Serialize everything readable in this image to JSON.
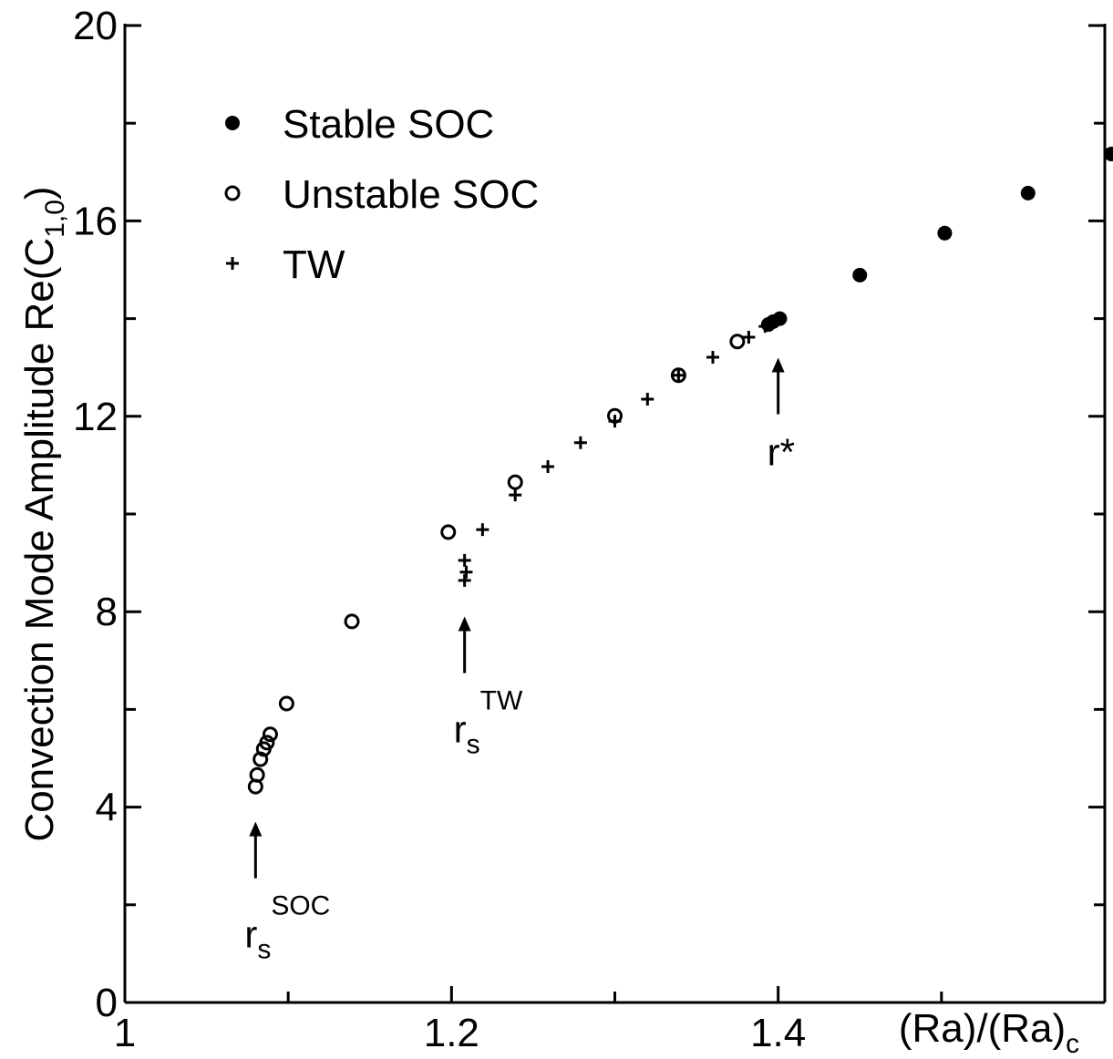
{
  "chart_data": {
    "type": "scatter",
    "xlabel": "(Ra)/(Ra)",
    "xlabel_sub": "c",
    "ylabel": "Convection Mode Amplitude Re(C",
    "ylabel_sub": "1,0",
    "ylabel_end": ")",
    "xlim": [
      1,
      1.6
    ],
    "ylim": [
      0,
      20
    ],
    "xticks": [
      1,
      1.2,
      1.4
    ],
    "yticks": [
      0,
      4,
      8,
      12,
      16,
      20
    ],
    "xminorticks": [
      1.1,
      1.3,
      1.5
    ],
    "yminorticks": [
      2,
      6,
      10,
      14,
      18
    ],
    "legend": "upper-left",
    "series": [
      {
        "name": "Stable SOC",
        "marker": "filled",
        "color": "#000000",
        "x": [
          1.394,
          1.397,
          1.401,
          1.45,
          1.502,
          1.553,
          1.604
        ],
        "values": [
          13.88,
          13.94,
          14.0,
          14.89,
          15.75,
          16.57,
          17.37
        ]
      },
      {
        "name": "Unstable SOC",
        "marker": "open",
        "color": "#000000",
        "x": [
          1.08,
          1.081,
          1.083,
          1.085,
          1.087,
          1.089,
          1.099,
          1.139,
          1.198,
          1.239,
          1.3,
          1.339,
          1.375
        ],
        "values": [
          4.42,
          4.66,
          4.98,
          5.19,
          5.32,
          5.49,
          6.12,
          7.8,
          9.63,
          10.65,
          12.01,
          12.84,
          13.53
        ]
      },
      {
        "name": "TW",
        "marker": "plus",
        "color": "#000000",
        "x": [
          1.208,
          1.209,
          1.208,
          1.219,
          1.239,
          1.259,
          1.279,
          1.3,
          1.32,
          1.339,
          1.36,
          1.382,
          1.392
        ],
        "values": [
          8.64,
          8.81,
          9.05,
          9.68,
          10.39,
          10.97,
          11.46,
          11.9,
          12.35,
          12.84,
          13.21,
          13.62,
          13.84
        ]
      }
    ],
    "annotations": [
      {
        "text": "r",
        "sub": "s",
        "sup": "SOC",
        "x": 1.08,
        "y": 3.7
      },
      {
        "text": "r",
        "sub": "s",
        "sup": "TW",
        "x": 1.208,
        "y": 7.9
      },
      {
        "text": "r*",
        "x": 1.4,
        "y": 13.2
      }
    ]
  }
}
